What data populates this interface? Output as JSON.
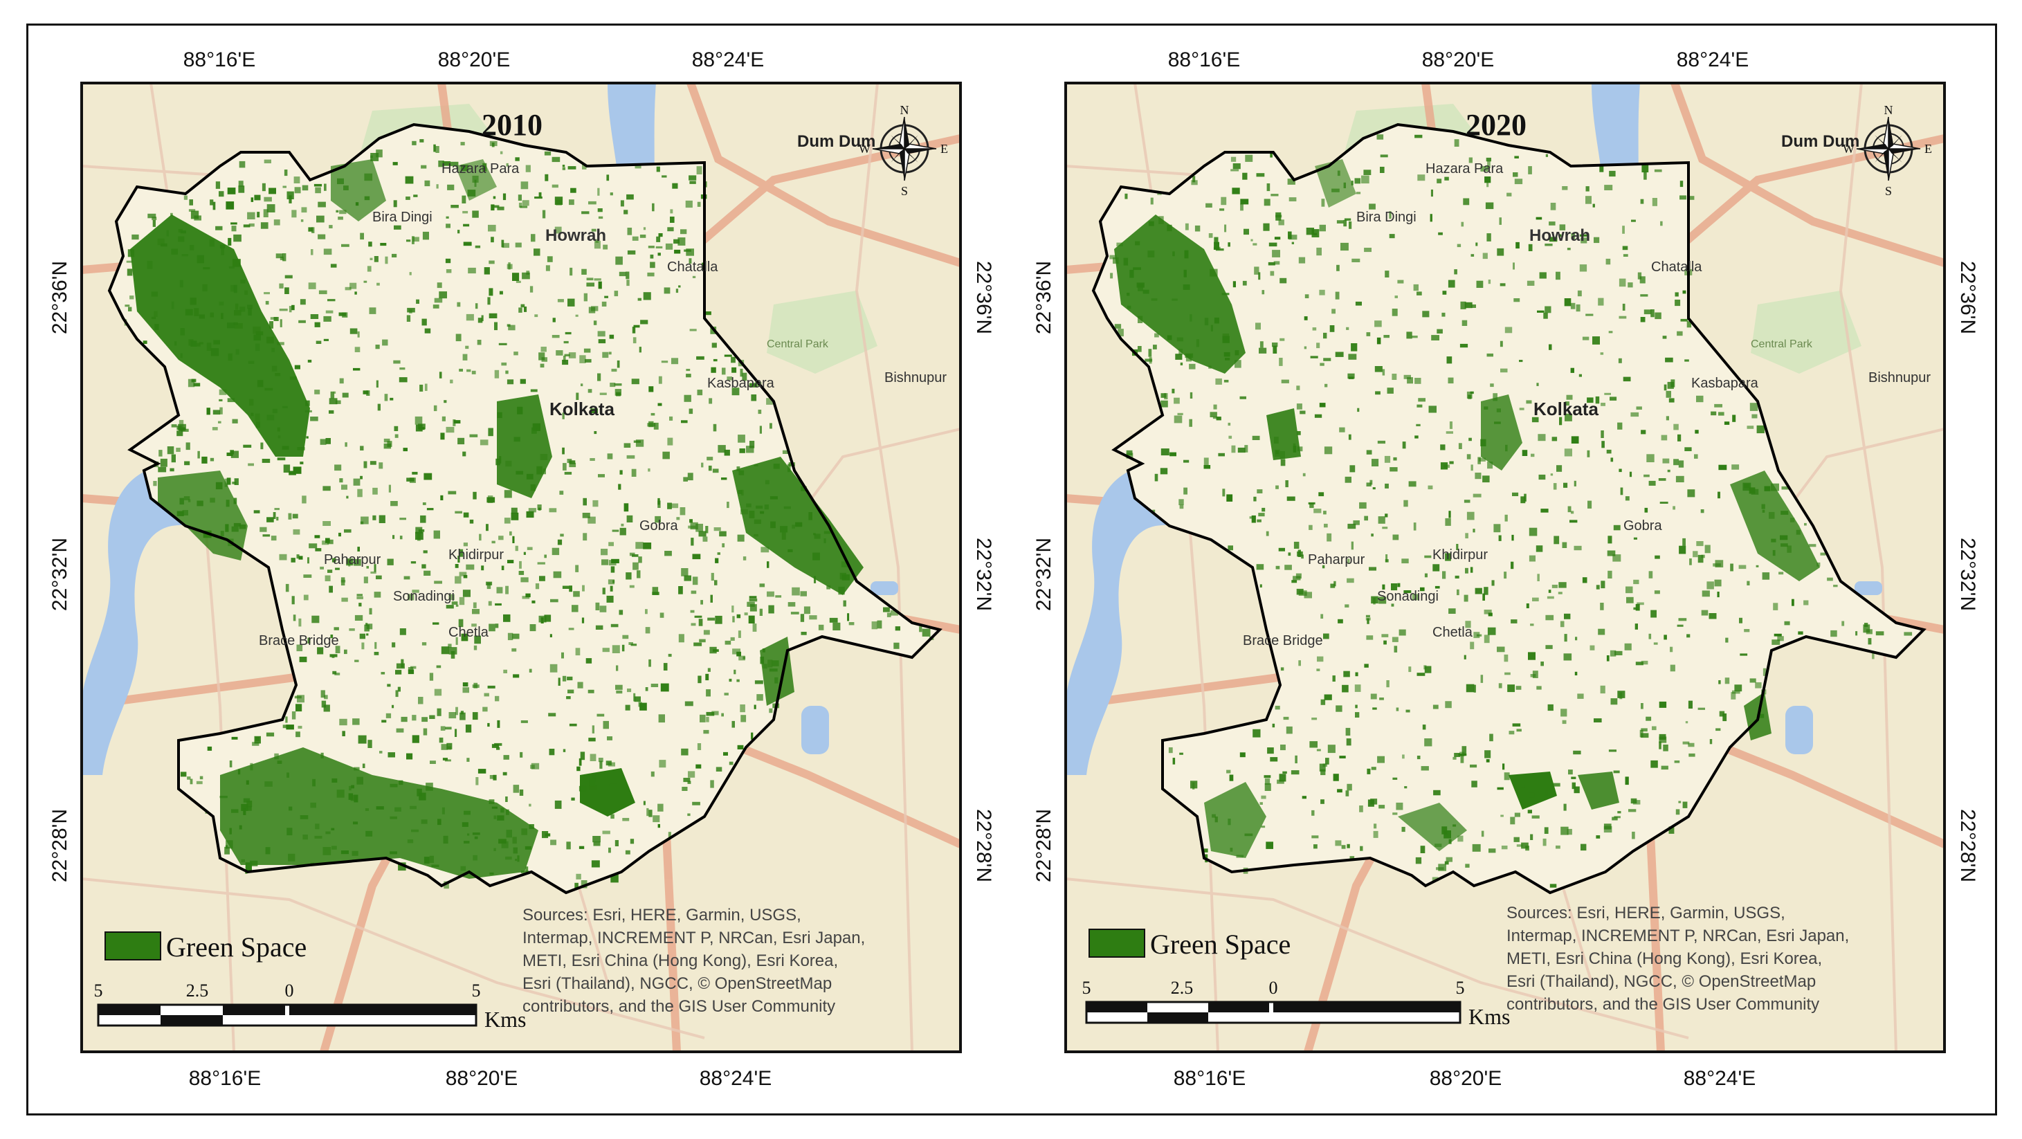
{
  "maps": [
    {
      "year": "2010",
      "x_ticks_top": [
        "88°16'E",
        "88°20'E",
        "88°24'E"
      ],
      "x_ticks_bottom": [
        "88°16'E",
        "88°20'E",
        "88°24'E"
      ],
      "y_ticks": [
        "22°36'N",
        "22°32'N",
        "22°28'N"
      ],
      "places": [
        "Dum Dum",
        "Hazara Para",
        "Bira Dingi",
        "Howrah",
        "Kolkata",
        "Bishnupur",
        "Paharpur",
        "Khidirpur",
        "Sonadingi",
        "Chetla",
        "Brace Bridge",
        "Gobra",
        "Kasbapara",
        "Chatalla",
        "Central Park"
      ],
      "legend_label": "Green Space",
      "scale": {
        "labels": [
          "5",
          "2.5",
          "0",
          "5"
        ],
        "unit": "Kms"
      },
      "compass": {
        "N": "N",
        "S": "S",
        "E": "E",
        "W": "W"
      },
      "sources": [
        "Sources: Esri, HERE, Garmin, USGS,",
        "Intermap, INCREMENT P, NRCan, Esri Japan,",
        "METI, Esri China (Hong Kong), Esri Korea,",
        "Esri (Thailand), NGCC, © OpenStreetMap",
        "contributors, and the GIS User Community"
      ]
    },
    {
      "year": "2020",
      "x_ticks_top": [
        "88°16'E",
        "88°20'E",
        "88°24'E"
      ],
      "x_ticks_bottom": [
        "88°16'E",
        "88°20'E",
        "88°24'E"
      ],
      "y_ticks": [
        "22°36'N",
        "22°32'N",
        "22°28'N"
      ],
      "places": [
        "Dum Dum",
        "Hazara Para",
        "Bira Dingi",
        "Howrah",
        "Kolkata",
        "Bishnupur",
        "Paharpur",
        "Khidirpur",
        "Sonadingi",
        "Chetla",
        "Brace Bridge",
        "Gobra",
        "Kasbapara",
        "Chatalla",
        "Central Park"
      ],
      "legend_label": "Green Space",
      "scale": {
        "labels": [
          "5",
          "2.5",
          "0",
          "5"
        ],
        "unit": "Kms"
      },
      "compass": {
        "N": "N",
        "S": "S",
        "E": "E",
        "W": "W"
      },
      "sources": [
        "Sources: Esri, HERE, Garmin, USGS,",
        "Intermap, INCREMENT P, NRCan, Esri Japan,",
        "METI, Esri China (Hong Kong), Esri Korea,",
        "Esri (Thailand), NGCC, © OpenStreetMap",
        "contributors, and the GIS User Community"
      ]
    }
  ],
  "colors": {
    "basemap": "#f1ead0",
    "green_space": "#2e7d12",
    "water": "#a9c7ea",
    "roads": "#e8a68a",
    "boundary": "#000000"
  }
}
